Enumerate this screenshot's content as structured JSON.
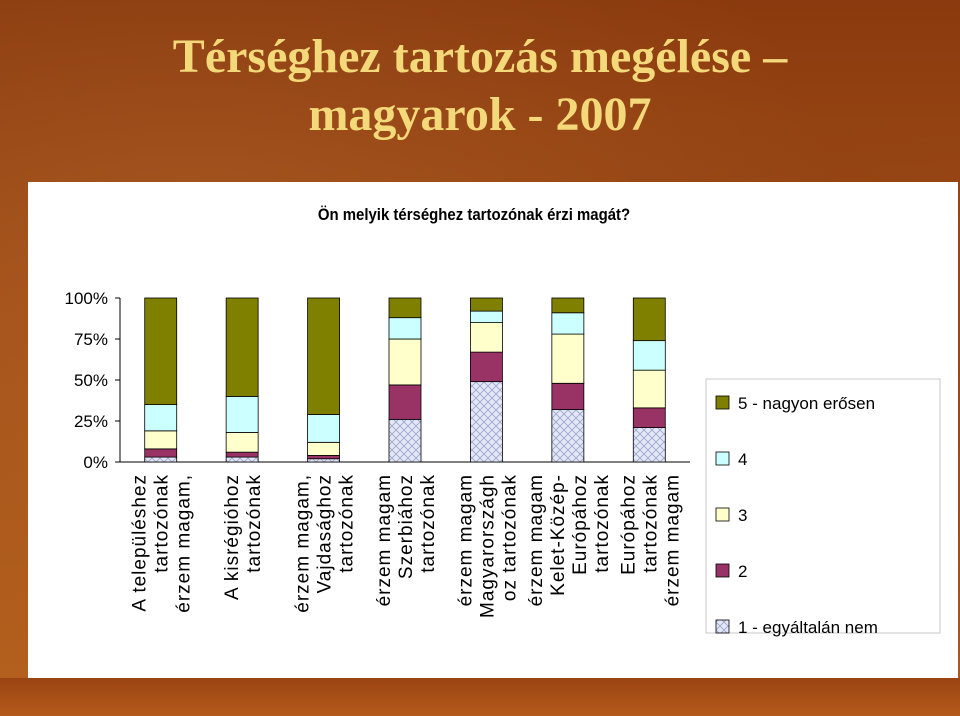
{
  "slide": {
    "title_line1": "Térséghez tartozás megélése –",
    "title_line2": "magyarok - 2007"
  },
  "chart_data": {
    "type": "bar",
    "stacked": true,
    "normalized": true,
    "title": "Ön melyik térséghez tartozónak érzi magát?",
    "ylim": [
      0,
      100
    ],
    "y_ticks": [
      "0%",
      "25%",
      "50%",
      "75%",
      "100%"
    ],
    "grid": false,
    "legend_position": "right",
    "categories": [
      [
        "A településhez",
        "tartozónak",
        "érzem magam,"
      ],
      [
        "A kisrégióhoz",
        "tartozónak"
      ],
      [
        "érzem magam,",
        "Vajdasághoz",
        "tartozónak"
      ],
      [
        "érzem magam",
        "Szerbiához",
        "tartozónak"
      ],
      [
        "érzem magam",
        "Magyarországh",
        "oz tartozónak"
      ],
      [
        "érzem magam",
        "Kelet-Közép-",
        "Európához",
        "tartozónak"
      ],
      [
        "Európához",
        "tartozónak",
        "érzem magam"
      ]
    ],
    "series": [
      {
        "name": "1 - egyáltalán nem",
        "color": "#d8dcf0",
        "pattern": "diamond",
        "values": [
          3,
          3,
          2,
          26,
          49,
          32,
          21
        ]
      },
      {
        "name": "2",
        "color": "#993366",
        "values": [
          5,
          3,
          2,
          21,
          18,
          16,
          12
        ]
      },
      {
        "name": "3",
        "color": "#ffffcc",
        "values": [
          11,
          12,
          8,
          28,
          18,
          30,
          23
        ]
      },
      {
        "name": "4",
        "color": "#ccffff",
        "values": [
          16,
          22,
          17,
          13,
          7,
          13,
          18
        ]
      },
      {
        "name": "5 - nagyon erősen",
        "color": "#808000",
        "values": [
          65,
          60,
          71,
          12,
          8,
          9,
          26
        ]
      }
    ]
  }
}
